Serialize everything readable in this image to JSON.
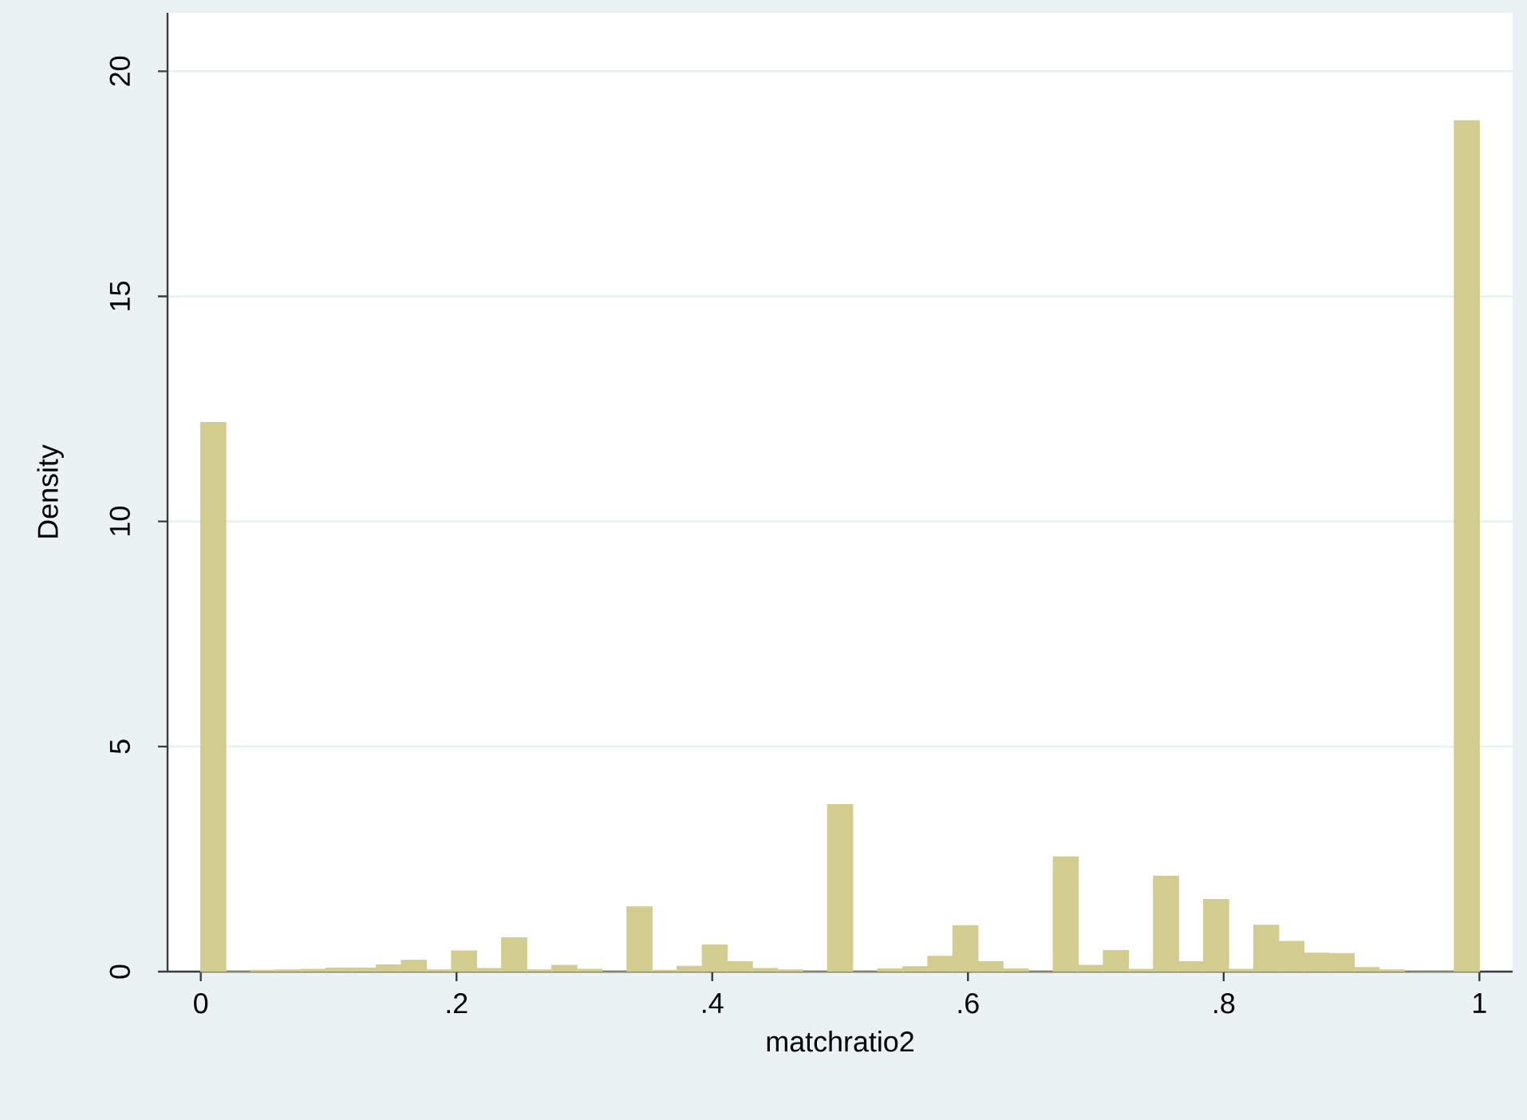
{
  "chart_data": {
    "type": "histogram",
    "xlabel": "matchratio2",
    "ylabel": "Density",
    "bins": [
      0,
      0.0196,
      0.0392,
      0.0588,
      0.0784,
      0.098,
      0.1176,
      0.1373,
      0.1569,
      0.1765,
      0.1961,
      0.2157,
      0.2353,
      0.2549,
      0.2745,
      0.2941,
      0.3137,
      0.3333,
      0.3529,
      0.3725,
      0.3922,
      0.4118,
      0.4314,
      0.451,
      0.4706,
      0.4902,
      0.5098,
      0.5294,
      0.549,
      0.5686,
      0.5882,
      0.6078,
      0.6275,
      0.6471,
      0.6667,
      0.6863,
      0.7059,
      0.7255,
      0.7451,
      0.7647,
      0.7843,
      0.8039,
      0.8235,
      0.8431,
      0.8627,
      0.8824,
      0.902,
      0.9216,
      0.9412,
      0.9608,
      0.9804,
      1
    ],
    "values": [
      12.2,
      0,
      0.03,
      0.04,
      0.05,
      0.08,
      0.08,
      0.15,
      0.25,
      0.04,
      0.46,
      0.07,
      0.75,
      0.04,
      0.14,
      0.05,
      0,
      1.44,
      0.03,
      0.12,
      0.59,
      0.22,
      0.07,
      0.04,
      0,
      3.71,
      0,
      0.06,
      0.11,
      0.34,
      1.02,
      0.22,
      0.06,
      0,
      2.55,
      0.14,
      0.47,
      0.05,
      2.12,
      0.22,
      1.6,
      0.05,
      1.03,
      0.67,
      0.41,
      0.4,
      0.09,
      0.04,
      0,
      0,
      18.9
    ],
    "color": "#d2cc8e",
    "xlim": [
      -0.026,
      1.026
    ],
    "ylim": [
      0,
      21.3
    ],
    "xticks": [
      0,
      {
        "value": 0.2,
        "label": ".2"
      },
      {
        "value": 0.4,
        "label": ".4"
      },
      {
        "value": 0.6,
        "label": ".6"
      },
      {
        "value": 0.8,
        "label": ".8"
      },
      1
    ],
    "yticks": [
      0,
      5,
      10,
      15,
      20
    ],
    "grid": "y"
  }
}
